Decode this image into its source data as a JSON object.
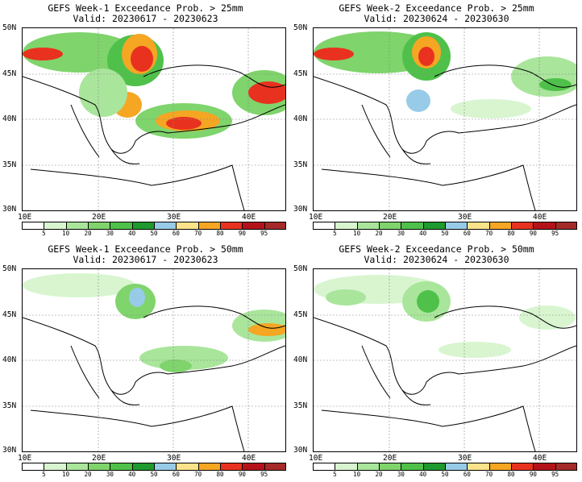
{
  "panels": [
    {
      "title_line1": "GEFS Week-1 Exceedance Prob. > 25mm",
      "title_line2": "Valid: 20230617 - 20230623"
    },
    {
      "title_line1": "GEFS Week-2 Exceedance Prob. > 25mm",
      "title_line2": "Valid: 20230624 - 20230630"
    },
    {
      "title_line1": "GEFS Week-1 Exceedance Prob. > 50mm",
      "title_line2": "Valid: 20230617 - 20230623"
    },
    {
      "title_line1": "GEFS Week-2 Exceedance Prob. > 50mm",
      "title_line2": "Valid: 20230624 - 20230630"
    }
  ],
  "axis": {
    "lat_labels": [
      "50N",
      "45N",
      "40N",
      "35N",
      "30N"
    ],
    "lon_labels": [
      "10E",
      "20E",
      "30E",
      "40E"
    ]
  },
  "colorbar": {
    "ticks": [
      "5",
      "10",
      "20",
      "30",
      "40",
      "50",
      "60",
      "70",
      "80",
      "90",
      "95"
    ],
    "colors": [
      "#ffffff",
      "#d8f5d0",
      "#a9e59b",
      "#7fd46c",
      "#4fc14a",
      "#1f9a2e",
      "#98cbe8",
      "#fbe38a",
      "#f5a623",
      "#e8321f",
      "#b4121a",
      "#a42a2a"
    ]
  }
}
